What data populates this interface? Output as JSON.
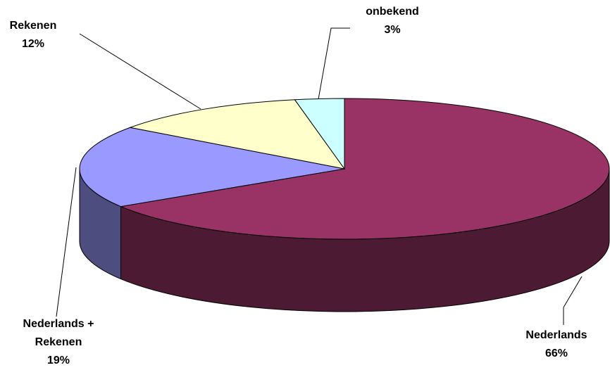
{
  "chart_data": {
    "type": "pie",
    "categories": [
      "Nederlands",
      "Nederlands + Rekenen",
      "Rekenen",
      "onbekend"
    ],
    "values": [
      66,
      19,
      12,
      3
    ],
    "value_labels": [
      "66%",
      "19%",
      "12%",
      "3%"
    ],
    "colors": [
      "#993366",
      "#9999ff",
      "#ffffcc",
      "#ccffff"
    ],
    "side_colors": [
      "#4d1a33",
      "#4d4d80",
      "#80805f",
      "#668080"
    ]
  }
}
